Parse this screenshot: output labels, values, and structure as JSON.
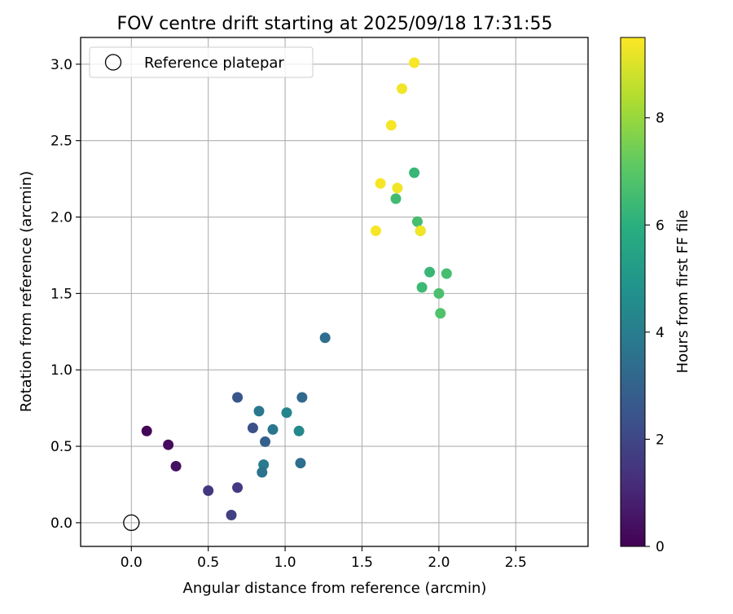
{
  "chart_data": {
    "type": "scatter",
    "title": "FOV centre drift starting at 2025/09/18 17:31:55",
    "xlabel": "Angular distance from reference (arcmin)",
    "ylabel": "Rotation from reference (arcmin)",
    "xlim": [
      -0.33,
      2.97
    ],
    "ylim": [
      -0.155,
      3.175
    ],
    "xticks": [
      0.0,
      0.5,
      1.0,
      1.5,
      2.0,
      2.5
    ],
    "xtick_labels": [
      "0.0",
      "0.5",
      "1.0",
      "1.5",
      "2.0",
      "2.5"
    ],
    "yticks": [
      0.0,
      0.5,
      1.0,
      1.5,
      2.0,
      2.5,
      3.0
    ],
    "ytick_labels": [
      "0.0",
      "0.5",
      "1.0",
      "1.5",
      "2.0",
      "2.5",
      "3.0"
    ],
    "grid": true,
    "legend": {
      "position": "top-left",
      "entries": [
        "Reference platepar"
      ]
    },
    "reference_point": {
      "x": 0.0,
      "y": 0.0
    },
    "colorbar": {
      "label": "Hours from first FF file",
      "range": [
        0,
        9.5
      ],
      "ticks": [
        0,
        2,
        4,
        6,
        8
      ],
      "tick_labels": [
        "0",
        "2",
        "4",
        "6",
        "8"
      ],
      "colormap": "viridis"
    },
    "series": [
      {
        "name": "FOV centre drift",
        "points": [
          {
            "x": 0.1,
            "y": 0.6,
            "c": 0.1
          },
          {
            "x": 0.24,
            "y": 0.51,
            "c": 0.3
          },
          {
            "x": 0.29,
            "y": 0.37,
            "c": 0.4
          },
          {
            "x": 0.5,
            "y": 0.21,
            "c": 1.5
          },
          {
            "x": 0.69,
            "y": 0.23,
            "c": 1.6
          },
          {
            "x": 0.65,
            "y": 0.05,
            "c": 1.8
          },
          {
            "x": 0.69,
            "y": 0.82,
            "c": 2.5
          },
          {
            "x": 0.79,
            "y": 0.62,
            "c": 2.3
          },
          {
            "x": 0.87,
            "y": 0.53,
            "c": 2.9
          },
          {
            "x": 0.83,
            "y": 0.73,
            "c": 3.8
          },
          {
            "x": 0.92,
            "y": 0.61,
            "c": 3.7
          },
          {
            "x": 0.86,
            "y": 0.38,
            "c": 3.9
          },
          {
            "x": 0.85,
            "y": 0.33,
            "c": 3.6
          },
          {
            "x": 1.01,
            "y": 0.72,
            "c": 4.3
          },
          {
            "x": 1.09,
            "y": 0.6,
            "c": 4.4
          },
          {
            "x": 1.11,
            "y": 0.82,
            "c": 3.2
          },
          {
            "x": 1.1,
            "y": 0.39,
            "c": 3.4
          },
          {
            "x": 1.26,
            "y": 1.21,
            "c": 3.4
          },
          {
            "x": 1.84,
            "y": 2.29,
            "c": 6.3
          },
          {
            "x": 1.72,
            "y": 2.12,
            "c": 6.5
          },
          {
            "x": 1.86,
            "y": 1.97,
            "c": 6.6
          },
          {
            "x": 1.88,
            "y": 1.91,
            "c": 6.7
          },
          {
            "x": 1.94,
            "y": 1.64,
            "c": 6.3
          },
          {
            "x": 2.05,
            "y": 1.63,
            "c": 6.6
          },
          {
            "x": 1.89,
            "y": 1.54,
            "c": 6.4
          },
          {
            "x": 2.0,
            "y": 1.5,
            "c": 6.7
          },
          {
            "x": 2.01,
            "y": 1.37,
            "c": 6.8
          },
          {
            "x": 1.84,
            "y": 3.01,
            "c": 9.4
          },
          {
            "x": 1.76,
            "y": 2.84,
            "c": 9.3
          },
          {
            "x": 1.69,
            "y": 2.6,
            "c": 9.4
          },
          {
            "x": 1.62,
            "y": 2.22,
            "c": 9.4
          },
          {
            "x": 1.73,
            "y": 2.19,
            "c": 9.3
          },
          {
            "x": 1.59,
            "y": 1.91,
            "c": 9.4
          },
          {
            "x": 1.88,
            "y": 1.91,
            "c": 9.3
          }
        ]
      }
    ]
  }
}
